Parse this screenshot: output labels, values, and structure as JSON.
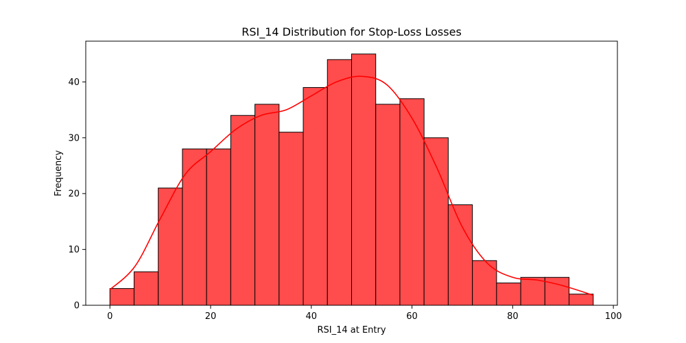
{
  "chart_data": {
    "type": "bar",
    "title": "RSI_14 Distribution for Stop-Loss Losses",
    "xlabel": "RSI_14 at Entry",
    "ylabel": "Frequency",
    "xlim": [
      -4.8,
      100.8
    ],
    "ylim": [
      0,
      47.3
    ],
    "x_ticks": [
      0,
      20,
      40,
      60,
      80,
      100
    ],
    "y_ticks": [
      0,
      10,
      20,
      30,
      40
    ],
    "bins": [
      {
        "start": 0.0,
        "end": 4.8,
        "count": 3
      },
      {
        "start": 4.8,
        "end": 9.6,
        "count": 6
      },
      {
        "start": 9.6,
        "end": 14.4,
        "count": 21
      },
      {
        "start": 14.4,
        "end": 19.2,
        "count": 28
      },
      {
        "start": 19.2,
        "end": 24.0,
        "count": 28
      },
      {
        "start": 24.0,
        "end": 28.8,
        "count": 34
      },
      {
        "start": 28.8,
        "end": 33.6,
        "count": 36
      },
      {
        "start": 33.6,
        "end": 38.4,
        "count": 31
      },
      {
        "start": 38.4,
        "end": 43.2,
        "count": 39
      },
      {
        "start": 43.2,
        "end": 48.0,
        "count": 44
      },
      {
        "start": 48.0,
        "end": 52.8,
        "count": 45
      },
      {
        "start": 52.8,
        "end": 57.6,
        "count": 36
      },
      {
        "start": 57.6,
        "end": 62.4,
        "count": 37
      },
      {
        "start": 62.4,
        "end": 67.2,
        "count": 30
      },
      {
        "start": 67.2,
        "end": 72.0,
        "count": 18
      },
      {
        "start": 72.0,
        "end": 76.8,
        "count": 8
      },
      {
        "start": 76.8,
        "end": 81.6,
        "count": 4
      },
      {
        "start": 81.6,
        "end": 86.4,
        "count": 5
      },
      {
        "start": 86.4,
        "end": 91.2,
        "count": 5
      },
      {
        "start": 91.2,
        "end": 96.0,
        "count": 2
      }
    ],
    "kde": {
      "x": [
        0,
        5,
        10,
        15,
        20,
        25,
        30,
        35,
        40,
        45,
        50,
        55,
        60,
        65,
        70,
        75,
        80,
        85,
        90,
        96
      ],
      "y": [
        2.8,
        7.0,
        15.5,
        23.5,
        27.5,
        31.5,
        34.0,
        35.0,
        37.5,
        40.0,
        41.0,
        39.5,
        33.5,
        24.5,
        14.0,
        7.5,
        5.0,
        4.5,
        3.5,
        1.8
      ]
    },
    "colors": {
      "bar_fill": "#ff4c4c",
      "bar_edge": "#000000",
      "kde_line": "#ff0000"
    },
    "grid": false,
    "legend": "none"
  }
}
